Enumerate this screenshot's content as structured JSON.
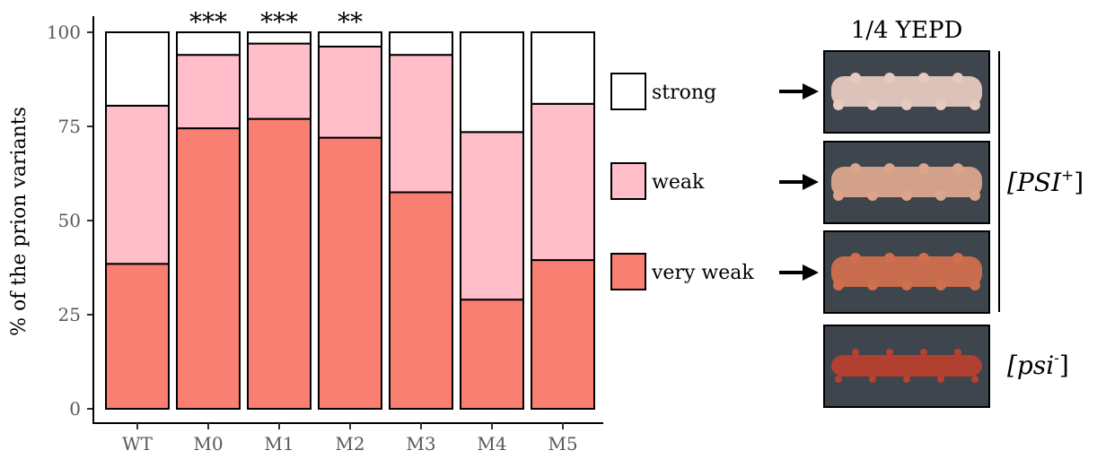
{
  "chart_data": {
    "type": "bar",
    "stacked": true,
    "ylabel": "% of the prion variants",
    "xlabel": "",
    "ylim": [
      0,
      100
    ],
    "yticks": [
      0,
      25,
      50,
      75,
      100
    ],
    "grid": false,
    "legend_position": "right",
    "categories": [
      "WT",
      "M0",
      "M1",
      "M2",
      "M3",
      "M4",
      "M5"
    ],
    "series": [
      {
        "name": "very weak",
        "color": "#F97F72",
        "values": [
          38.5,
          74.5,
          77,
          72,
          57.5,
          29,
          39.5
        ]
      },
      {
        "name": "weak",
        "color": "#FFBEC9",
        "values": [
          42,
          19.5,
          20,
          24.2,
          36.5,
          44.5,
          41.5
        ]
      },
      {
        "name": "strong",
        "color": "#FFFFFF",
        "values": [
          19.5,
          6,
          3,
          3.8,
          6,
          26.5,
          19
        ]
      }
    ],
    "significance": [
      "",
      "***",
      "***",
      "**",
      "",
      "",
      ""
    ]
  },
  "legend": {
    "items": [
      {
        "label": "strong",
        "color": "#FFFFFF"
      },
      {
        "label": "weak",
        "color": "#FFBEC9"
      },
      {
        "label": "very weak",
        "color": "#F97F72"
      }
    ]
  },
  "plate_panel": {
    "title": "1/4 YEPD",
    "psi_plus_main": "[PSI",
    "psi_plus_sup": "+",
    "psi_minus_main": "[psi",
    "psi_minus_sup": "-",
    "bracket_close": "]",
    "plate_bg": "#3e454d",
    "streak_colors": [
      "#e6c9bf",
      "#dba58c",
      "#cf6f4d",
      "#b8402e"
    ]
  }
}
